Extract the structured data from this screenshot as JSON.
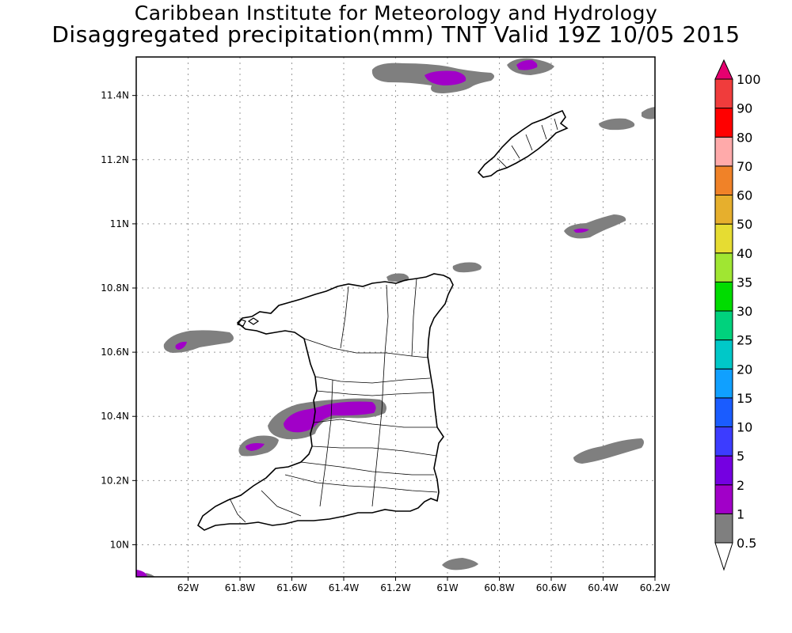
{
  "header": {
    "title": "Caribbean Institute for Meteorology and Hydrology",
    "subtitle": "Disaggregated precipitation(mm) TNT Valid 19Z 10/05 2015"
  },
  "map": {
    "lon_range": [
      -62.2,
      -60.2
    ],
    "lat_range": [
      9.9,
      11.52
    ],
    "grid": true,
    "x_ticks": [
      {
        "value": -62.0,
        "label": "62W"
      },
      {
        "value": -61.8,
        "label": "61.8W"
      },
      {
        "value": -61.6,
        "label": "61.6W"
      },
      {
        "value": -61.4,
        "label": "61.4W"
      },
      {
        "value": -61.2,
        "label": "61.2W"
      },
      {
        "value": -61.0,
        "label": "61W"
      },
      {
        "value": -60.8,
        "label": "60.8W"
      },
      {
        "value": -60.6,
        "label": "60.6W"
      },
      {
        "value": -60.4,
        "label": "60.4W"
      },
      {
        "value": -60.2,
        "label": "60.2W"
      }
    ],
    "y_ticks": [
      {
        "value": 10.0,
        "label": "10N"
      },
      {
        "value": 10.2,
        "label": "10.2N"
      },
      {
        "value": 10.4,
        "label": "10.4N"
      },
      {
        "value": 10.6,
        "label": "10.6N"
      },
      {
        "value": 10.8,
        "label": "10.8N"
      },
      {
        "value": 11.0,
        "label": "11N"
      },
      {
        "value": 11.2,
        "label": "11.2N"
      },
      {
        "value": 11.4,
        "label": "11.4N"
      }
    ]
  },
  "legend": {
    "labels": [
      "0.5",
      "1",
      "2",
      "5",
      "10",
      "15",
      "20",
      "25",
      "30",
      "35",
      "40",
      "50",
      "60",
      "70",
      "80",
      "90",
      "100"
    ],
    "colors": [
      "#ffffff",
      "#7f7f7f",
      "#a100c8",
      "#7500e1",
      "#3c3cff",
      "#1a5cff",
      "#10a0ff",
      "#00c8c8",
      "#00d27d",
      "#00dc00",
      "#a0e632",
      "#e6dc32",
      "#e6af2d",
      "#f08228",
      "#ffaaaa",
      "#ff0000",
      "#f03c3c",
      "#e6006f"
    ]
  },
  "chart_data": {
    "type": "heatmap",
    "title": "Disaggregated precipitation(mm) TNT Valid 19Z 10/05 2015",
    "units": "mm",
    "regions": [
      {
        "class": "0.5-1",
        "center_lon": -61.02,
        "center_lat": 11.47
      },
      {
        "class": "1-2",
        "center_lon": -61.01,
        "center_lat": 11.46
      },
      {
        "class": "0.5-1",
        "center_lon": -60.67,
        "center_lat": 11.49
      },
      {
        "class": "1-2",
        "center_lon": -60.67,
        "center_lat": 11.49
      },
      {
        "class": "0.5-1",
        "center_lon": -60.36,
        "center_lat": 11.31
      },
      {
        "class": "0.5-1",
        "center_lon": -60.2,
        "center_lat": 11.35
      },
      {
        "class": "0.5-1",
        "center_lon": -60.41,
        "center_lat": 10.99
      },
      {
        "class": "1-2",
        "center_lon": -60.45,
        "center_lat": 10.98
      },
      {
        "class": "0.5-1",
        "center_lon": -60.9,
        "center_lat": 10.86
      },
      {
        "class": "0.5-1",
        "center_lon": -61.2,
        "center_lat": 10.83
      },
      {
        "class": "0.5-1",
        "center_lon": -61.99,
        "center_lat": 10.63
      },
      {
        "class": "1-2",
        "center_lon": -62.0,
        "center_lat": 10.62
      },
      {
        "class": "0.5-1",
        "center_lon": -61.45,
        "center_lat": 10.4
      },
      {
        "class": "1-2",
        "center_lon": -61.5,
        "center_lat": 10.39
      },
      {
        "class": "1-2",
        "center_lon": -61.34,
        "center_lat": 10.42
      },
      {
        "class": "0.5-1",
        "center_lon": -61.69,
        "center_lat": 10.31
      },
      {
        "class": "1-2",
        "center_lon": -61.7,
        "center_lat": 10.31
      },
      {
        "class": "0.5-1",
        "center_lon": -60.37,
        "center_lat": 10.3
      },
      {
        "class": "0.5-1",
        "center_lon": -60.91,
        "center_lat": 9.95
      },
      {
        "class": "1-2",
        "center_lon": -62.2,
        "center_lat": 9.91
      }
    ]
  }
}
